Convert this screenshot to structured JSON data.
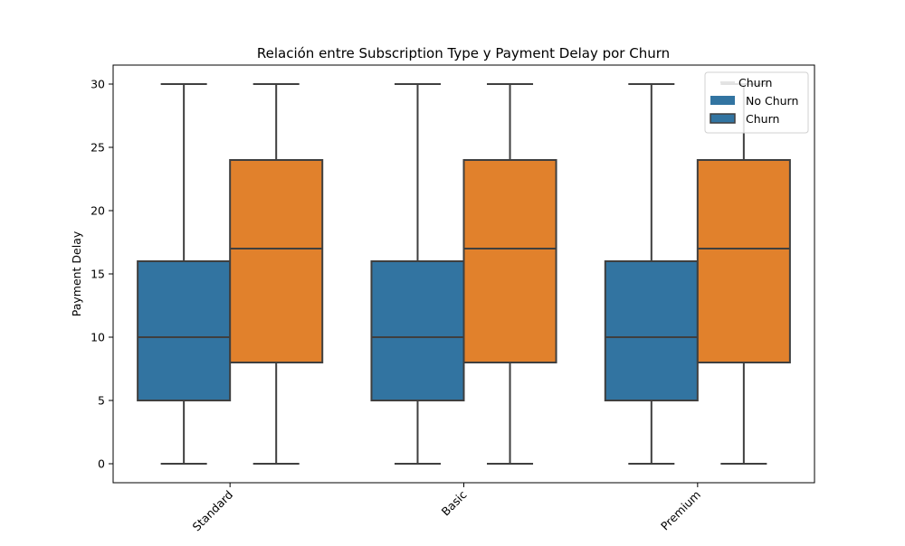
{
  "chart_data": {
    "type": "box",
    "title": "Relación entre Subscription Type y Payment Delay por Churn",
    "xlabel": "",
    "ylabel": "Payment Delay",
    "categories": [
      "Standard",
      "Basic",
      "Premium"
    ],
    "ylim": [
      -1.5,
      31.5
    ],
    "yticks": [
      0,
      5,
      10,
      15,
      20,
      25,
      30
    ],
    "grid": false,
    "legend": {
      "title": "Churn",
      "position": "top-right"
    },
    "series": [
      {
        "name": "No Churn",
        "color": "#3274a1",
        "boxes": [
          {
            "whisker_low": 0,
            "q1": 5,
            "median": 10,
            "q3": 16,
            "whisker_high": 30
          },
          {
            "whisker_low": 0,
            "q1": 5,
            "median": 10,
            "q3": 16,
            "whisker_high": 30
          },
          {
            "whisker_low": 0,
            "q1": 5,
            "median": 10,
            "q3": 16,
            "whisker_high": 30
          }
        ]
      },
      {
        "name": "Churn",
        "color": "#e1812c",
        "legend_color": "#3274a1",
        "boxes": [
          {
            "whisker_low": 0,
            "q1": 8,
            "median": 17,
            "q3": 24,
            "whisker_high": 30
          },
          {
            "whisker_low": 0,
            "q1": 8,
            "median": 17,
            "q3": 24,
            "whisker_high": 30
          },
          {
            "whisker_low": 0,
            "q1": 8,
            "median": 17,
            "q3": 24,
            "whisker_high": 30
          }
        ]
      }
    ]
  }
}
